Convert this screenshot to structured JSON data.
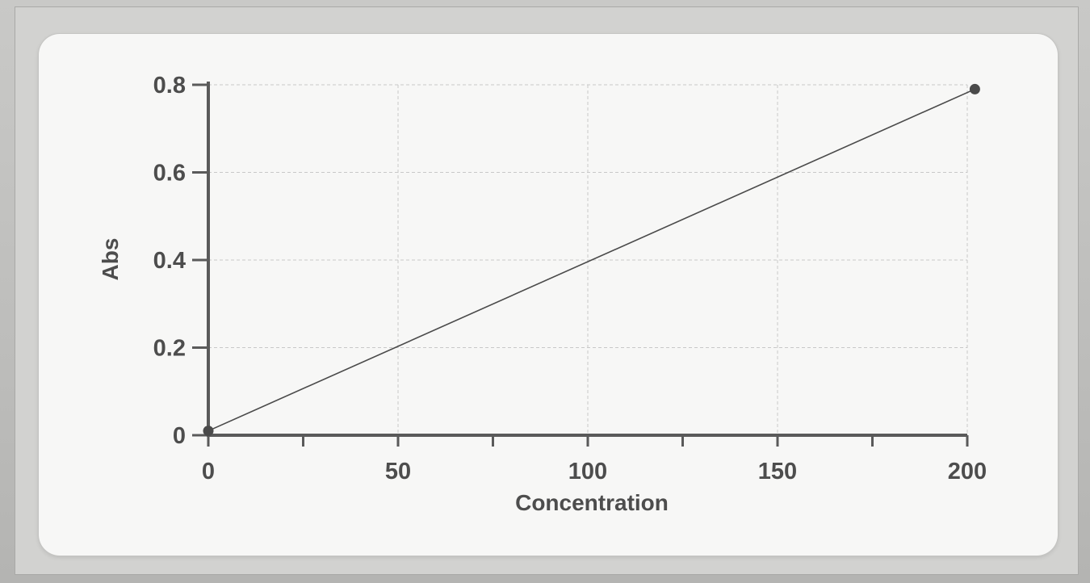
{
  "chart_data": {
    "type": "line",
    "title": "",
    "xlabel": "Concentration",
    "ylabel": "Abs",
    "xlim": [
      0,
      200
    ],
    "ylim": [
      0,
      0.8
    ],
    "x_ticks": [
      "0",
      "50",
      "100",
      "150",
      "200"
    ],
    "y_ticks": [
      "0",
      "0.2",
      "0.4",
      "0.6",
      "0.8"
    ],
    "grid": true,
    "legend": "none",
    "series": [
      {
        "x": [
          0,
          202
        ],
        "y": [
          0.01,
          0.79
        ],
        "markers": true
      }
    ],
    "colors": {
      "line": "#4a4a4a",
      "marker": "#4a4a4a",
      "axis": "#5a5a5a",
      "grid": "#c8c8c8",
      "text": "#4d4d4d"
    }
  }
}
